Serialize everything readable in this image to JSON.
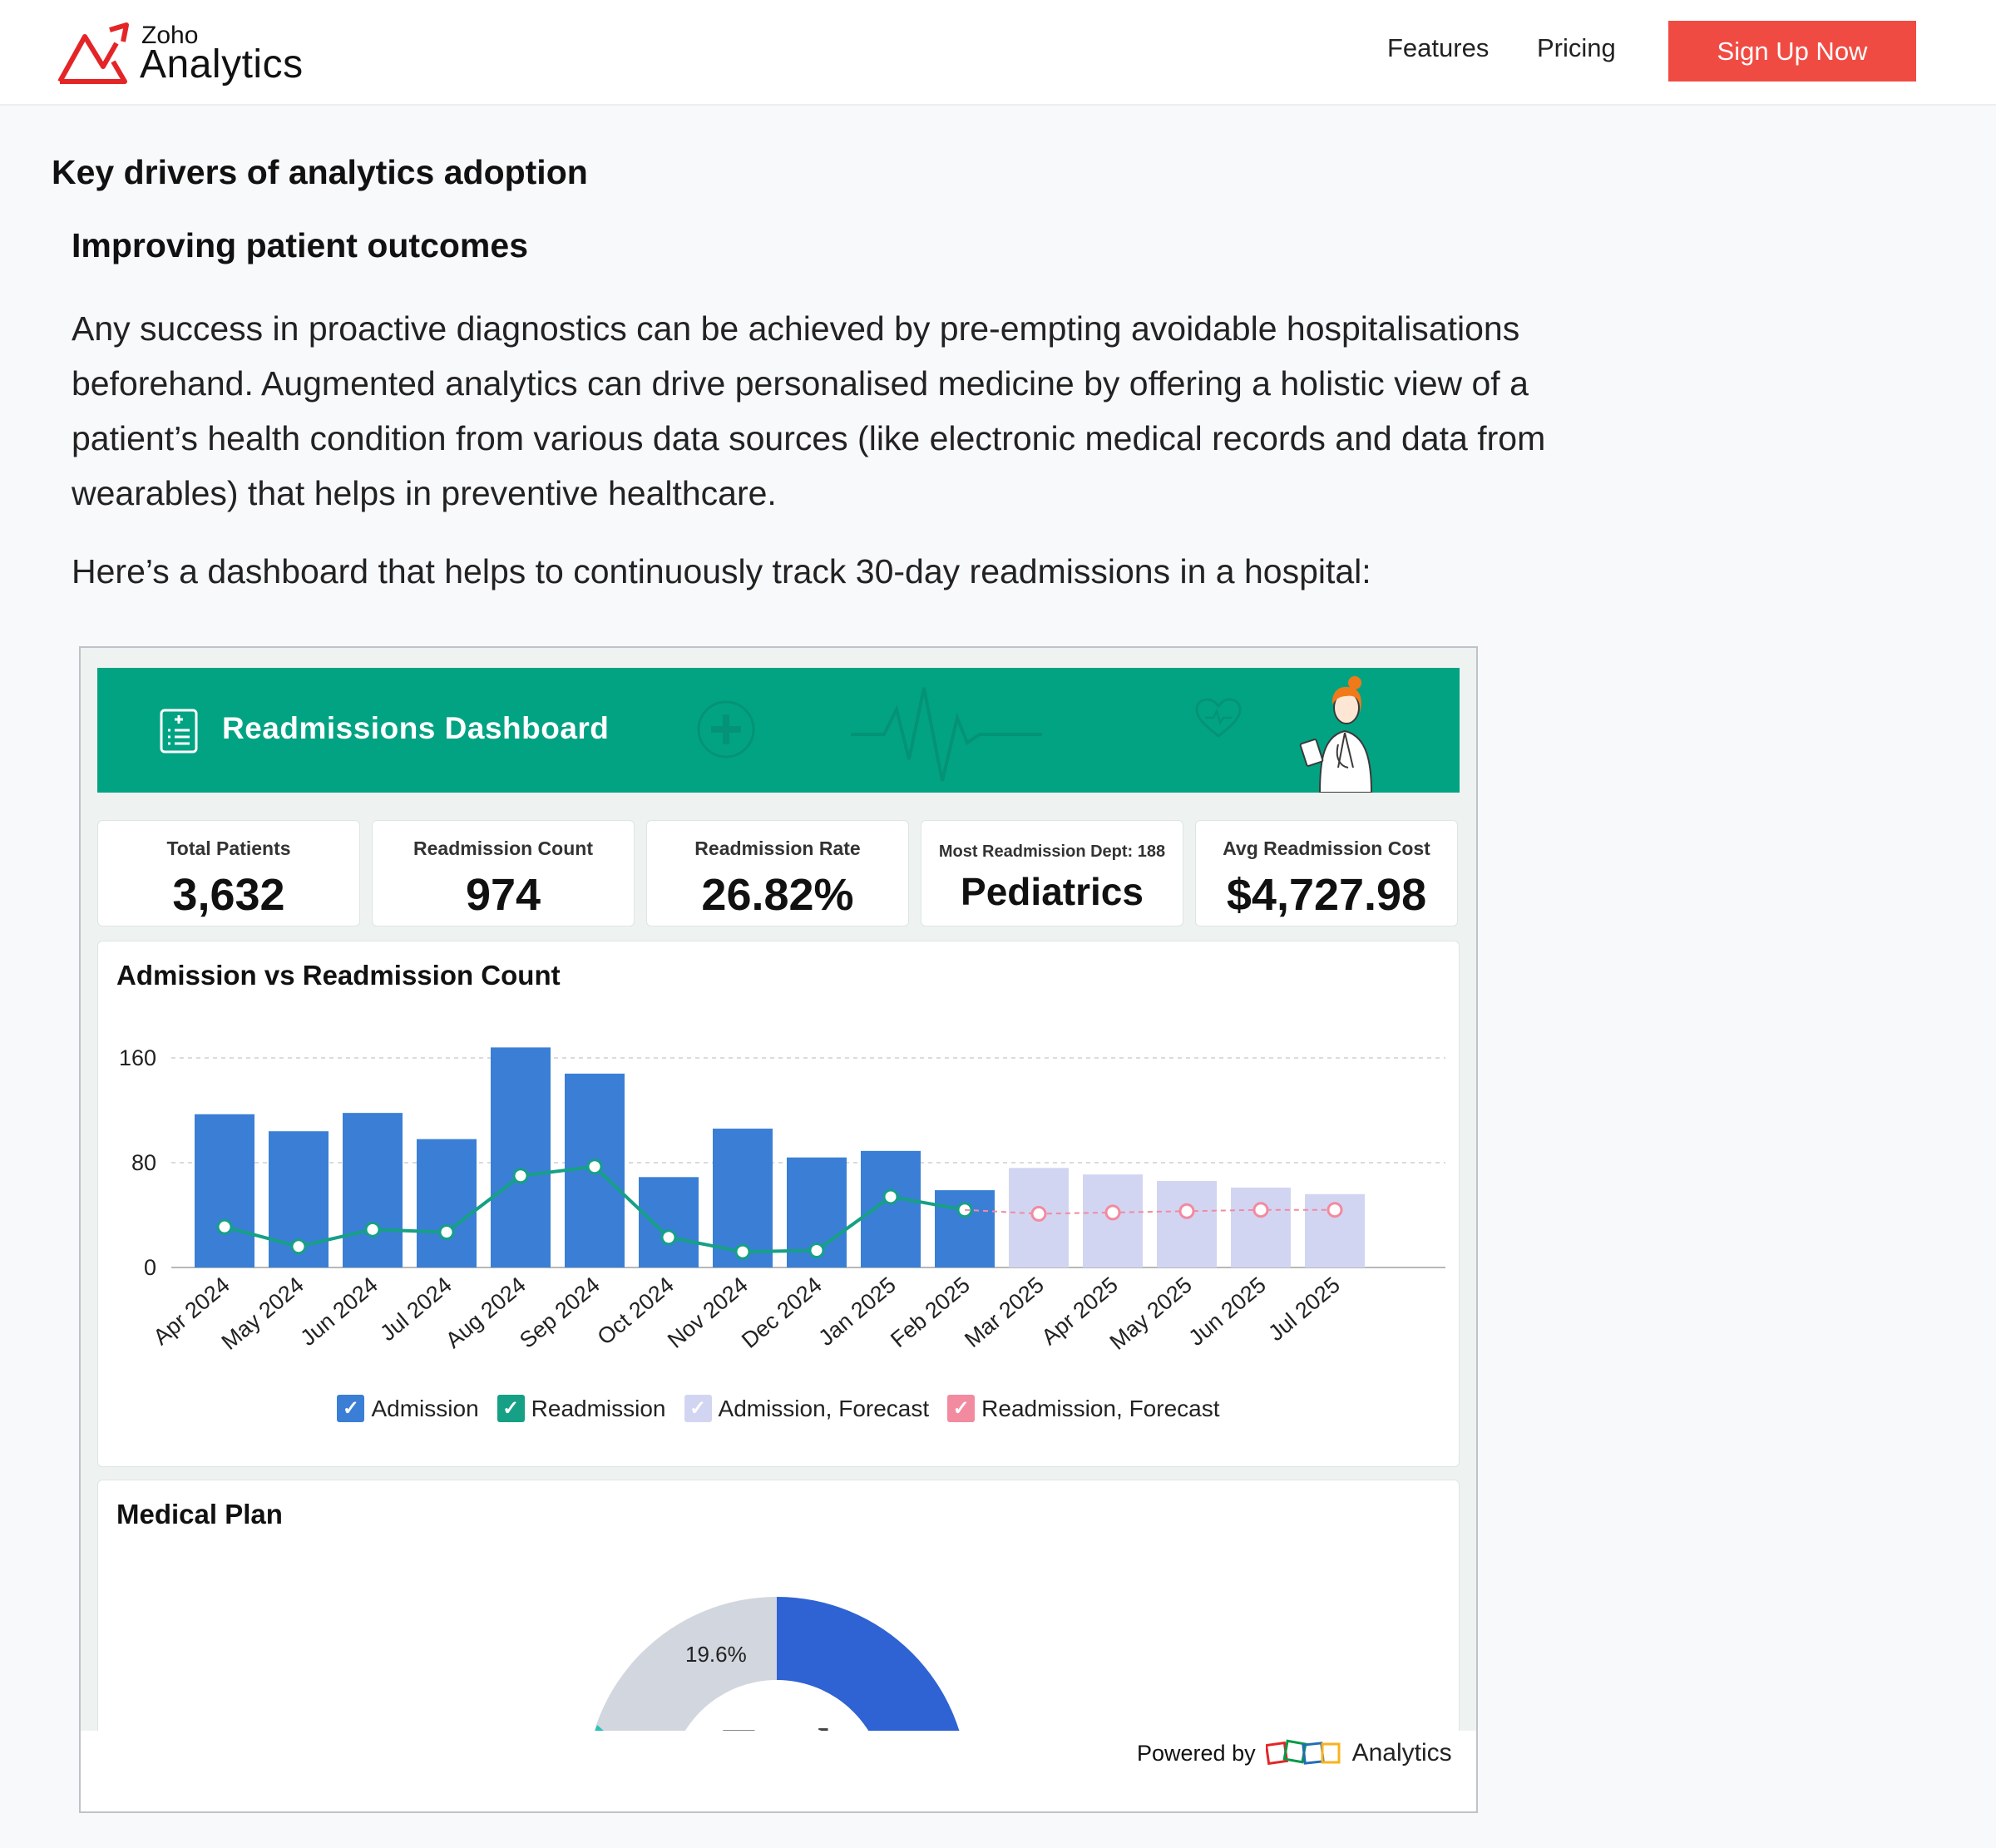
{
  "header": {
    "logo_small": "Zoho",
    "logo_big": "Analytics",
    "nav": {
      "features": "Features",
      "pricing": "Pricing"
    },
    "signup_label": "Sign Up Now",
    "accent": "#f04b43"
  },
  "article": {
    "heading": "Key drivers of analytics adoption",
    "subheading": "Improving patient outcomes",
    "paragraph": "Any success in proactive diagnostics can be achieved by pre-empting avoidable hospitalisations beforehand. Augmented analytics can drive personalised medicine by offering a holistic view of a patient’s health condition from various data sources (like electronic medical records and data from wearables) that helps in preventive healthcare.",
    "intro": "Here’s a dashboard that helps to continuously track 30-day readmissions in a hospital:"
  },
  "dashboard": {
    "title": "Readmissions Dashboard",
    "banner_color": "#02a383",
    "kpis": [
      {
        "label": "Total Patients",
        "value": "3,632"
      },
      {
        "label": "Readmission Count",
        "value": "974"
      },
      {
        "label": "Readmission Rate",
        "value": "26.82%"
      },
      {
        "label": "Most Readmission Dept: 188",
        "value": "Pediatrics"
      },
      {
        "label": "Avg Readmission Cost",
        "value": "$4,727.98"
      }
    ],
    "medical_plan": {
      "title": "Medical Plan",
      "slice_label": "19.6%",
      "partial_text": "Total"
    },
    "powered_by": "Powered by",
    "powered_brand": "Analytics"
  },
  "chart_data": {
    "type": "bar",
    "title": "Admission vs Readmission Count",
    "categories": [
      "Apr 2024",
      "May 2024",
      "Jun 2024",
      "Jul 2024",
      "Aug 2024",
      "Sep 2024",
      "Oct 2024",
      "Nov 2024",
      "Dec 2024",
      "Jan 2025",
      "Feb 2025",
      "Mar 2025",
      "Apr 2025",
      "May 2025",
      "Jun 2025",
      "Jul 2025"
    ],
    "yticks": [
      0,
      80,
      160
    ],
    "ylim": [
      0,
      160
    ],
    "grid": true,
    "legend_position": "bottom",
    "series": [
      {
        "name": "Admission",
        "kind": "bar",
        "color": "#3a7fd5",
        "values": [
          117,
          104,
          118,
          98,
          168,
          148,
          69,
          106,
          84,
          89,
          59,
          null,
          null,
          null,
          null,
          null
        ]
      },
      {
        "name": "Readmission",
        "kind": "line",
        "color": "#16a085",
        "values": [
          31,
          16,
          29,
          27,
          70,
          77,
          23,
          12,
          13,
          54,
          44,
          null,
          null,
          null,
          null,
          null
        ]
      },
      {
        "name": "Admission, Forecast",
        "kind": "bar",
        "color": "#d2d5f2",
        "values": [
          null,
          null,
          null,
          null,
          null,
          null,
          null,
          null,
          null,
          null,
          null,
          76,
          71,
          66,
          61,
          56
        ]
      },
      {
        "name": "Readmission, Forecast",
        "kind": "line",
        "color": "#f28aa0",
        "values": [
          null,
          null,
          null,
          null,
          null,
          null,
          null,
          null,
          null,
          null,
          44,
          41,
          42,
          43,
          44,
          44
        ]
      }
    ]
  }
}
